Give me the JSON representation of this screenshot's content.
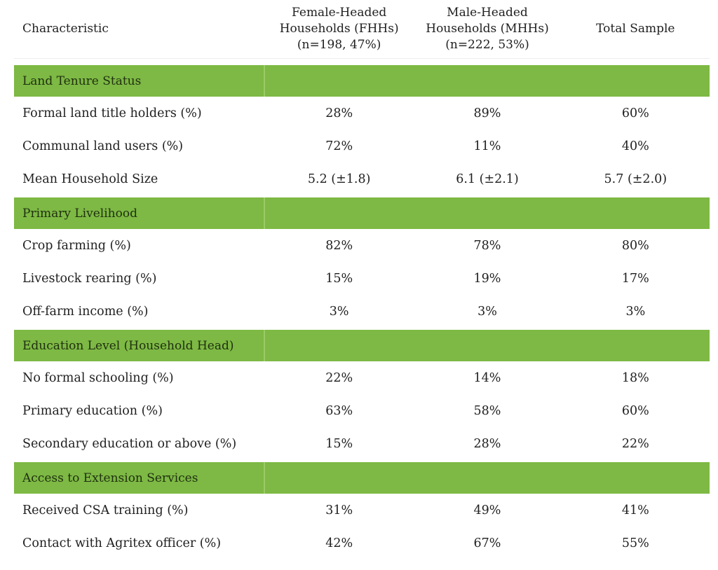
{
  "colors": {
    "section_band_green": "#7db944",
    "section_band_divider_green": "#9bcb66",
    "section_title_text": "#203010",
    "body_text": "#1f1f1f",
    "header_underline": "#ececec",
    "background": "#ffffff"
  },
  "table": {
    "columns": [
      {
        "label": "Characteristic"
      },
      {
        "label": "Female-Headed\nHouseholds (FHHs)\n(n=198, 47%)"
      },
      {
        "label": "Male-Headed\nHouseholds (MHHs)\n(n=222, 53%)"
      },
      {
        "label": "Total Sample"
      }
    ],
    "sections": [
      {
        "title": "Land Tenure Status",
        "rows": [
          {
            "label": "Formal land title holders (%)",
            "values": [
              "28%",
              "89%",
              "60%"
            ]
          },
          {
            "label": "Communal land users (%)",
            "values": [
              "72%",
              "11%",
              "40%"
            ]
          },
          {
            "label": "Mean Household Size",
            "values": [
              "5.2 (±1.8)",
              "6.1 (±2.1)",
              "5.7 (±2.0)"
            ]
          }
        ]
      },
      {
        "title": "Primary Livelihood",
        "rows": [
          {
            "label": "Crop farming (%)",
            "values": [
              "82%",
              "78%",
              "80%"
            ]
          },
          {
            "label": "Livestock rearing (%)",
            "values": [
              "15%",
              "19%",
              "17%"
            ]
          },
          {
            "label": "Off-farm income (%)",
            "values": [
              "3%",
              "3%",
              "3%"
            ]
          }
        ]
      },
      {
        "title": "Education Level (Household Head)",
        "rows": [
          {
            "label": "No formal schooling (%)",
            "values": [
              "22%",
              "14%",
              "18%"
            ]
          },
          {
            "label": "Primary education (%)",
            "values": [
              "63%",
              "58%",
              "60%"
            ]
          },
          {
            "label": "Secondary education or above (%)",
            "values": [
              "15%",
              "28%",
              "22%"
            ]
          }
        ]
      },
      {
        "title": "Access to Extension Services",
        "rows": [
          {
            "label": "Received CSA training (%)",
            "values": [
              "31%",
              "49%",
              "41%"
            ]
          },
          {
            "label": "Contact with Agritex officer (%)",
            "values": [
              "42%",
              "67%",
              "55%"
            ]
          }
        ]
      }
    ]
  }
}
